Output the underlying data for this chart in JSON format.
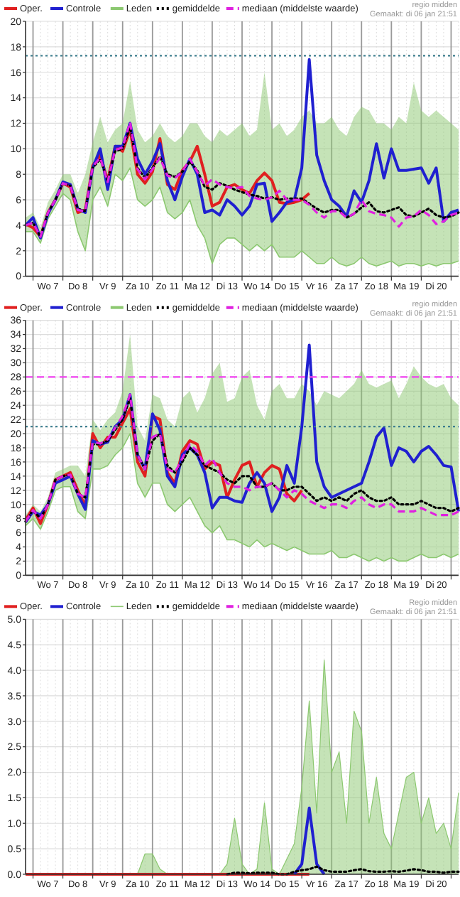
{
  "chart_data": [
    {
      "type": "line",
      "annotations": [
        "regio midden",
        "Gemaakt: di 06 jan 21:51"
      ],
      "legend": "top",
      "grid": true,
      "ylim": [
        0,
        20
      ],
      "yticks": [
        0,
        2,
        4,
        6,
        8,
        10,
        12,
        14,
        16,
        18,
        20
      ],
      "ref_lines": [
        {
          "axis": "y",
          "value": 17.3,
          "color": "#3f7f8f",
          "line_style": "dotted"
        }
      ],
      "categories": [
        null,
        null,
        null,
        "Wo 7",
        null,
        null,
        null,
        "Do 8",
        null,
        null,
        null,
        "Vr 9",
        null,
        null,
        null,
        "Za 10",
        null,
        null,
        null,
        "Zo 11",
        null,
        null,
        null,
        "Ma 12",
        null,
        null,
        null,
        "Di 13",
        null,
        null,
        null,
        "Wo 14",
        null,
        null,
        null,
        "Do 15",
        null,
        null,
        null,
        "Vr 16",
        null,
        null,
        null,
        "Za 17",
        null,
        null,
        null,
        "Zo 18",
        null,
        null,
        null,
        "Ma 19",
        null,
        null,
        null,
        "Di 20",
        null,
        null,
        null
      ],
      "series": [
        {
          "name": "Oper.",
          "color": "#e02020",
          "values": [
            4.1,
            3.8,
            3.1,
            5.0,
            6.0,
            7.3,
            7.0,
            5.0,
            5.2,
            8.7,
            9.5,
            7.5,
            10.2,
            9.8,
            11.5,
            8.0,
            7.3,
            8.2,
            10.8,
            7.2,
            6.8,
            8.3,
            9.0,
            10.2,
            8.0,
            5.5,
            5.8,
            7.0,
            7.2,
            6.8,
            6.5,
            7.5,
            8.1,
            7.5,
            5.8,
            5.7,
            5.8,
            6.0,
            6.5,
            null,
            null,
            null,
            null,
            null,
            null,
            null,
            null,
            null,
            null,
            null,
            null,
            null,
            null,
            null,
            null,
            null,
            null,
            null,
            null
          ]
        },
        {
          "name": "Controle",
          "color": "#2020d0",
          "values": [
            4.0,
            4.6,
            3.0,
            4.9,
            6.0,
            7.4,
            7.2,
            5.3,
            5.0,
            8.5,
            10.0,
            6.8,
            10.2,
            10.2,
            12.0,
            9.2,
            8.0,
            9.0,
            10.4,
            7.5,
            6.0,
            7.8,
            9.2,
            8.0,
            5.0,
            5.2,
            4.8,
            6.0,
            5.5,
            4.8,
            5.5,
            7.2,
            7.3,
            4.3,
            5.0,
            5.8,
            6.0,
            8.5,
            17.0,
            9.5,
            7.5,
            6.0,
            5.5,
            4.7,
            6.7,
            5.8,
            7.5,
            10.4,
            7.7,
            10.0,
            8.3,
            8.3,
            8.4,
            8.5,
            7.3,
            8.5,
            4.3,
            5.0,
            5.2
          ]
        },
        {
          "name": "Leden",
          "color": "#8cc870",
          "values": [
            3.5,
            3.5,
            2.6,
            4.5,
            5.5,
            6.5,
            6.0,
            3.5,
            2.0,
            6.0,
            7.0,
            5.5,
            8.0,
            7.5,
            8.5,
            6.0,
            5.5,
            6.0,
            7.0,
            5.0,
            4.5,
            5.0,
            6.0,
            4.0,
            3.0,
            1.0,
            2.5,
            3.0,
            3.0,
            2.5,
            2.0,
            2.5,
            2.0,
            2.5,
            1.5,
            1.5,
            1.5,
            2.0,
            1.5,
            1.0,
            1.0,
            1.5,
            1.0,
            0.8,
            1.0,
            1.5,
            1.0,
            0.8,
            1.0,
            1.2,
            0.8,
            1.0,
            1.0,
            0.8,
            1.0,
            0.8,
            1.0,
            1.0,
            1.2
          ],
          "lower": [
            3.5,
            3.5,
            2.6,
            4.5,
            5.5,
            6.5,
            6.0,
            3.5,
            2.0,
            6.0,
            7.0,
            5.5,
            8.0,
            7.5,
            8.5,
            6.0,
            5.5,
            6.0,
            7.0,
            5.0,
            4.5,
            5.0,
            6.0,
            4.0,
            3.0,
            1.0,
            2.5,
            3.0,
            3.0,
            2.5,
            2.0,
            2.5,
            2.0,
            2.5,
            1.5,
            1.5,
            1.5,
            2.0,
            1.5,
            1.0,
            1.0,
            1.5,
            1.0,
            0.8,
            1.0,
            1.5,
            1.0,
            0.8,
            1.0,
            1.2,
            0.8,
            1.0,
            1.0,
            0.8,
            1.0,
            0.8,
            1.0,
            1.0,
            1.2
          ],
          "upper": [
            4.6,
            5.0,
            3.8,
            5.8,
            6.8,
            8.0,
            8.0,
            6.5,
            8.0,
            10.5,
            12.5,
            10.5,
            11.5,
            12.0,
            15.3,
            11.5,
            10.5,
            11.0,
            12.0,
            11.0,
            10.5,
            11.0,
            12.0,
            12.0,
            11.0,
            10.5,
            11.5,
            11.0,
            11.5,
            12.0,
            11.0,
            11.5,
            16.0,
            11.5,
            12.0,
            11.0,
            11.5,
            12.5,
            13.0,
            12.0,
            12.0,
            12.5,
            11.5,
            11.0,
            12.5,
            13.3,
            13.0,
            12.0,
            12.0,
            11.5,
            12.5,
            12.0,
            15.2,
            13.0,
            12.5,
            13.0,
            12.5,
            12.0,
            11.5
          ]
        },
        {
          "name": "gemiddelde",
          "color": "#000000",
          "line_style": "dotted",
          "values": [
            4.0,
            4.2,
            3.1,
            5.0,
            6.0,
            7.3,
            7.1,
            5.3,
            5.1,
            8.5,
            9.2,
            7.5,
            9.8,
            10.0,
            11.7,
            8.5,
            7.7,
            8.5,
            9.4,
            8.0,
            7.8,
            8.2,
            9.0,
            8.3,
            7.0,
            6.8,
            7.3,
            7.1,
            6.8,
            6.6,
            6.4,
            6.3,
            6.1,
            6.2,
            6.0,
            6.1,
            6.1,
            6.1,
            5.7,
            5.3,
            5.0,
            5.2,
            5.2,
            4.6,
            4.9,
            5.4,
            5.8,
            5.1,
            5.0,
            5.2,
            5.4,
            4.8,
            4.7,
            5.0,
            5.3,
            4.8,
            4.6,
            4.7,
            5.0
          ]
        },
        {
          "name": "mediaan (middelste waarde)",
          "color": "#e020e0",
          "line_style": "dashed",
          "values": [
            4.0,
            4.2,
            3.1,
            5.0,
            6.0,
            7.3,
            7.1,
            5.2,
            5.1,
            8.6,
            9.3,
            7.4,
            9.9,
            10.1,
            12.1,
            8.4,
            7.6,
            8.4,
            9.3,
            7.9,
            7.7,
            8.2,
            9.2,
            8.2,
            7.1,
            7.6,
            7.2,
            7.0,
            6.9,
            7.0,
            6.3,
            6.1,
            6.0,
            6.2,
            6.7,
            6.0,
            6.0,
            6.0,
            5.6,
            5.0,
            4.6,
            5.1,
            5.1,
            4.6,
            4.9,
            6.0,
            5.1,
            4.9,
            4.8,
            4.6,
            3.9,
            4.6,
            4.7,
            5.2,
            4.8,
            4.1,
            4.3,
            4.8,
            5.0
          ]
        }
      ]
    },
    {
      "type": "line",
      "annotations": [
        "regio midden",
        "Gemaakt: di 06 jan 21:51"
      ],
      "legend": "top",
      "grid": true,
      "ylim": [
        0,
        36
      ],
      "yticks": [
        0,
        2,
        4,
        6,
        8,
        10,
        12,
        14,
        16,
        18,
        20,
        22,
        24,
        26,
        28,
        30,
        32,
        34,
        36
      ],
      "ref_lines": [
        {
          "axis": "y",
          "value": 28,
          "color": "#f040f0",
          "line_style": "dashed"
        },
        {
          "axis": "y",
          "value": 21,
          "color": "#3f7f8f",
          "line_style": "dotted"
        }
      ],
      "categories": [
        null,
        null,
        null,
        "Wo 7",
        null,
        null,
        null,
        "Do 8",
        null,
        null,
        null,
        "Vr 9",
        null,
        null,
        null,
        "Za 10",
        null,
        null,
        null,
        "Zo 11",
        null,
        null,
        null,
        "Ma 12",
        null,
        null,
        null,
        "Di 13",
        null,
        null,
        null,
        "Wo 14",
        null,
        null,
        null,
        "Do 15",
        null,
        null,
        null,
        "Vr 16",
        null,
        null,
        null,
        "Za 17",
        null,
        null,
        null,
        "Zo 18",
        null,
        null,
        null,
        "Ma 19",
        null,
        null,
        null,
        "Di 20",
        null,
        null,
        null
      ],
      "series": [
        {
          "name": "Oper.",
          "color": "#e02020",
          "values": [
            7.8,
            9.5,
            7.3,
            10.0,
            13.5,
            14.0,
            14.5,
            12.0,
            9.8,
            20.0,
            18.0,
            19.5,
            19.5,
            21.5,
            23.5,
            16.0,
            14.0,
            22.5,
            22.0,
            14.5,
            13.0,
            17.5,
            19.0,
            18.5,
            15.0,
            16.0,
            15.5,
            11.0,
            13.5,
            15.5,
            16.0,
            12.5,
            14.5,
            15.5,
            15.0,
            11.5,
            10.5,
            12.0,
            null,
            null,
            null,
            null,
            null,
            null,
            null,
            null,
            null,
            null,
            null,
            null,
            null,
            null,
            null,
            null,
            null,
            null,
            null,
            null,
            null
          ]
        },
        {
          "name": "Controle",
          "color": "#2020d0",
          "values": [
            7.5,
            9.0,
            8.5,
            10.0,
            13.0,
            13.5,
            14.0,
            11.5,
            9.3,
            19.0,
            18.5,
            18.8,
            21.0,
            22.0,
            25.5,
            17.0,
            15.0,
            22.8,
            20.5,
            14.0,
            12.5,
            17.0,
            18.0,
            17.0,
            14.5,
            9.5,
            11.0,
            11.0,
            10.5,
            10.3,
            13.0,
            14.5,
            13.0,
            9.0,
            11.0,
            15.5,
            13.0,
            21.0,
            32.5,
            16.0,
            12.5,
            11.0,
            11.5,
            12.0,
            12.5,
            13.0,
            16.0,
            19.5,
            20.8,
            15.5,
            18.0,
            17.5,
            16.0,
            17.5,
            18.2,
            17.0,
            15.5,
            15.3,
            9.0
          ]
        },
        {
          "name": "Leden",
          "color": "#8cc870",
          "values": [
            7.0,
            8.0,
            6.5,
            9.0,
            12.0,
            12.5,
            12.5,
            9.0,
            8.0,
            15.0,
            15.0,
            15.5,
            17.0,
            18.0,
            20.0,
            13.0,
            11.0,
            13.0,
            13.0,
            10.0,
            9.0,
            10.0,
            11.0,
            9.0,
            7.0,
            6.0,
            7.0,
            5.0,
            5.0,
            4.5,
            4.0,
            5.0,
            4.0,
            4.5,
            4.0,
            3.5,
            4.0,
            3.5,
            3.0,
            3.0,
            3.0,
            3.5,
            2.5,
            2.5,
            3.0,
            2.5,
            2.0,
            2.5,
            2.0,
            2.5,
            2.0,
            2.0,
            2.5,
            3.0,
            2.5,
            2.5,
            3.0,
            2.5,
            3.0
          ],
          "lower": [
            7.0,
            8.0,
            6.5,
            9.0,
            12.0,
            12.5,
            12.5,
            9.0,
            8.0,
            15.0,
            15.0,
            15.5,
            17.0,
            18.0,
            20.0,
            13.0,
            11.0,
            13.0,
            13.0,
            10.0,
            9.0,
            10.0,
            11.0,
            9.0,
            7.0,
            6.0,
            7.0,
            5.0,
            5.0,
            4.5,
            4.0,
            5.0,
            4.0,
            4.5,
            4.0,
            3.5,
            4.0,
            3.5,
            3.0,
            3.0,
            3.0,
            3.5,
            2.5,
            2.5,
            3.0,
            2.5,
            2.0,
            2.5,
            2.0,
            2.5,
            2.0,
            2.0,
            2.5,
            3.0,
            2.5,
            2.5,
            3.0,
            2.5,
            3.0
          ],
          "upper": [
            8.5,
            10.0,
            9.0,
            11.0,
            14.5,
            15.0,
            15.5,
            15.5,
            14.0,
            22.0,
            20.5,
            22.0,
            23.0,
            26.0,
            34.0,
            21.0,
            19.0,
            25.5,
            25.0,
            22.0,
            21.0,
            25.0,
            26.0,
            23.0,
            25.0,
            28.5,
            30.0,
            24.5,
            25.0,
            28.0,
            29.0,
            24.0,
            22.0,
            26.0,
            27.0,
            25.0,
            25.0,
            27.0,
            26.0,
            24.0,
            26.0,
            25.5,
            25.0,
            26.0,
            27.0,
            29.0,
            27.0,
            26.5,
            27.0,
            27.5,
            25.0,
            27.0,
            29.5,
            28.0,
            27.0,
            26.5,
            27.0,
            25.0,
            24.0
          ]
        },
        {
          "name": "gemiddelde",
          "color": "#000000",
          "line_style": "dotted",
          "values": [
            7.6,
            9.2,
            8.0,
            10.0,
            13.5,
            14.0,
            14.2,
            11.5,
            11.0,
            18.5,
            18.5,
            19.0,
            20.5,
            22.0,
            25.0,
            17.0,
            15.0,
            19.0,
            20.0,
            15.5,
            14.5,
            16.0,
            18.0,
            17.0,
            15.5,
            15.0,
            14.5,
            13.5,
            13.0,
            14.0,
            14.0,
            12.5,
            12.5,
            13.0,
            12.0,
            12.0,
            12.5,
            12.5,
            11.5,
            10.5,
            11.0,
            10.5,
            11.0,
            10.5,
            11.5,
            12.0,
            11.0,
            10.5,
            10.5,
            11.0,
            10.0,
            10.0,
            10.0,
            10.5,
            10.0,
            9.5,
            9.5,
            9.0,
            9.5
          ]
        },
        {
          "name": "mediaan (middelste waarde)",
          "color": "#e020e0",
          "line_style": "dashed",
          "values": [
            7.6,
            9.2,
            8.0,
            10.0,
            13.5,
            14.0,
            14.2,
            11.5,
            11.0,
            18.8,
            18.6,
            19.2,
            20.8,
            22.5,
            25.5,
            17.0,
            15.0,
            19.5,
            20.0,
            15.0,
            14.5,
            16.5,
            18.5,
            17.5,
            15.5,
            16.5,
            14.5,
            13.0,
            12.5,
            12.5,
            12.0,
            12.5,
            12.5,
            13.0,
            12.0,
            11.0,
            12.0,
            11.5,
            10.5,
            10.0,
            9.5,
            10.0,
            10.0,
            9.5,
            10.5,
            11.0,
            10.0,
            9.5,
            10.0,
            10.0,
            9.0,
            9.0,
            9.0,
            9.5,
            9.0,
            8.5,
            8.5,
            8.5,
            9.0
          ]
        }
      ]
    },
    {
      "type": "line",
      "annotations": [
        "Regio midden",
        "Gemaakt: di 06 jan 21:51"
      ],
      "legend": "top",
      "grid": true,
      "ylim": [
        0,
        5
      ],
      "yticks": [
        {
          "value": 0,
          "label": "0.0"
        },
        {
          "value": 0.5,
          "label": "0.5"
        },
        {
          "value": 1,
          "label": "1.0"
        },
        {
          "value": 1.5,
          "label": "1.5"
        },
        {
          "value": 2,
          "label": "2.0"
        },
        {
          "value": 2.5,
          "label": "2.5"
        },
        {
          "value": 3,
          "label": "3.0"
        },
        {
          "value": 3.5,
          "label": "3.5"
        },
        {
          "value": 4,
          "label": "4.0"
        },
        {
          "value": 4.5,
          "label": "4.5"
        },
        {
          "value": 5,
          "label": "5.0"
        }
      ],
      "categories": [
        null,
        null,
        null,
        "Wo 7",
        null,
        null,
        null,
        "Do 8",
        null,
        null,
        null,
        "Vr 9",
        null,
        null,
        null,
        "Za 10",
        null,
        null,
        null,
        "Zo 11",
        null,
        null,
        null,
        "Ma 12",
        null,
        null,
        null,
        "Di 13",
        null,
        null,
        null,
        "Wo 14",
        null,
        null,
        null,
        "Do 15",
        null,
        null,
        null,
        "Vr 16",
        null,
        null,
        null,
        "Za 17",
        null,
        null,
        null,
        "Zo 18",
        null,
        null,
        null,
        "Ma 19",
        null,
        null,
        null,
        "Di 20",
        null,
        null,
        null
      ],
      "series": [
        {
          "name": "Oper.",
          "color": "#e02020",
          "values": [
            0,
            0,
            0,
            0,
            0,
            0,
            0,
            0,
            0,
            0,
            0,
            0,
            0,
            0,
            0,
            0,
            0,
            0,
            0,
            0,
            0,
            0,
            0,
            0,
            0,
            0,
            0,
            0,
            0,
            0,
            0,
            0,
            0,
            0,
            0,
            0,
            0,
            0,
            0,
            null,
            null,
            null,
            null,
            null,
            null,
            null,
            null,
            null,
            null,
            null,
            null,
            null,
            null,
            null,
            null,
            null,
            null,
            null,
            null
          ]
        },
        {
          "name": "Controle",
          "color": "#2020d0",
          "values": [
            null,
            null,
            null,
            null,
            null,
            null,
            null,
            null,
            null,
            null,
            null,
            null,
            null,
            null,
            null,
            null,
            null,
            null,
            null,
            null,
            null,
            null,
            null,
            null,
            null,
            null,
            null,
            null,
            null,
            null,
            null,
            null,
            null,
            null,
            null,
            null,
            0,
            0.2,
            1.3,
            0.2,
            0,
            null,
            null,
            null,
            null,
            null,
            null,
            null,
            null,
            null,
            null,
            null,
            null,
            null,
            null,
            null,
            null,
            null,
            null
          ]
        },
        {
          "name": "Leden",
          "type": "area",
          "color": "#8cc870",
          "values": [
            0,
            0,
            0,
            0,
            0,
            0,
            0,
            0,
            0,
            0,
            0,
            0,
            0,
            0,
            0,
            0,
            0.4,
            0.4,
            0.1,
            0,
            0,
            0,
            0,
            0,
            0,
            0,
            0,
            0.2,
            1.1,
            0.2,
            0,
            0.1,
            1.4,
            0.1,
            0,
            0.3,
            0.6,
            1.7,
            3.4,
            1.2,
            4.2,
            2.0,
            2.4,
            1.0,
            3.2,
            2.8,
            1.0,
            1.9,
            0.8,
            0.5,
            1.2,
            1.9,
            2.0,
            1.0,
            1.5,
            0.8,
            1.0,
            0.5,
            1.6
          ]
        },
        {
          "name": "gemiddelde",
          "color": "#000000",
          "line_style": "dotted",
          "values": [
            null,
            null,
            null,
            null,
            null,
            null,
            null,
            null,
            null,
            null,
            null,
            null,
            null,
            null,
            null,
            null,
            null,
            null,
            null,
            null,
            null,
            null,
            null,
            null,
            null,
            null,
            null,
            0,
            0.03,
            0.03,
            0.02,
            0.03,
            0.03,
            0.03,
            0,
            0,
            0.05,
            0.08,
            0.1,
            0.15,
            0.08,
            0.05,
            0.05,
            0.05,
            0.08,
            0.1,
            0.06,
            0.05,
            0.05,
            0.06,
            0.05,
            0.07,
            0.1,
            0.08,
            0.05,
            0.05,
            0.03,
            0.05,
            0.05
          ]
        },
        {
          "name": "mediaan (middelste waarde)",
          "color": "#e020e0",
          "line_style": "dashed",
          "values": [
            null,
            null,
            null,
            null,
            null,
            null,
            null,
            null,
            null,
            null,
            null,
            null,
            null,
            null,
            null,
            null,
            null,
            null,
            null,
            null,
            null,
            null,
            null,
            null,
            null,
            null,
            null,
            null,
            null,
            null,
            null,
            null,
            null,
            null,
            null,
            null,
            null,
            null,
            null,
            null,
            null,
            null,
            null,
            null,
            null,
            null,
            null,
            null,
            null,
            null,
            null,
            null,
            null,
            null,
            null,
            null,
            null,
            null,
            null
          ]
        }
      ]
    }
  ]
}
